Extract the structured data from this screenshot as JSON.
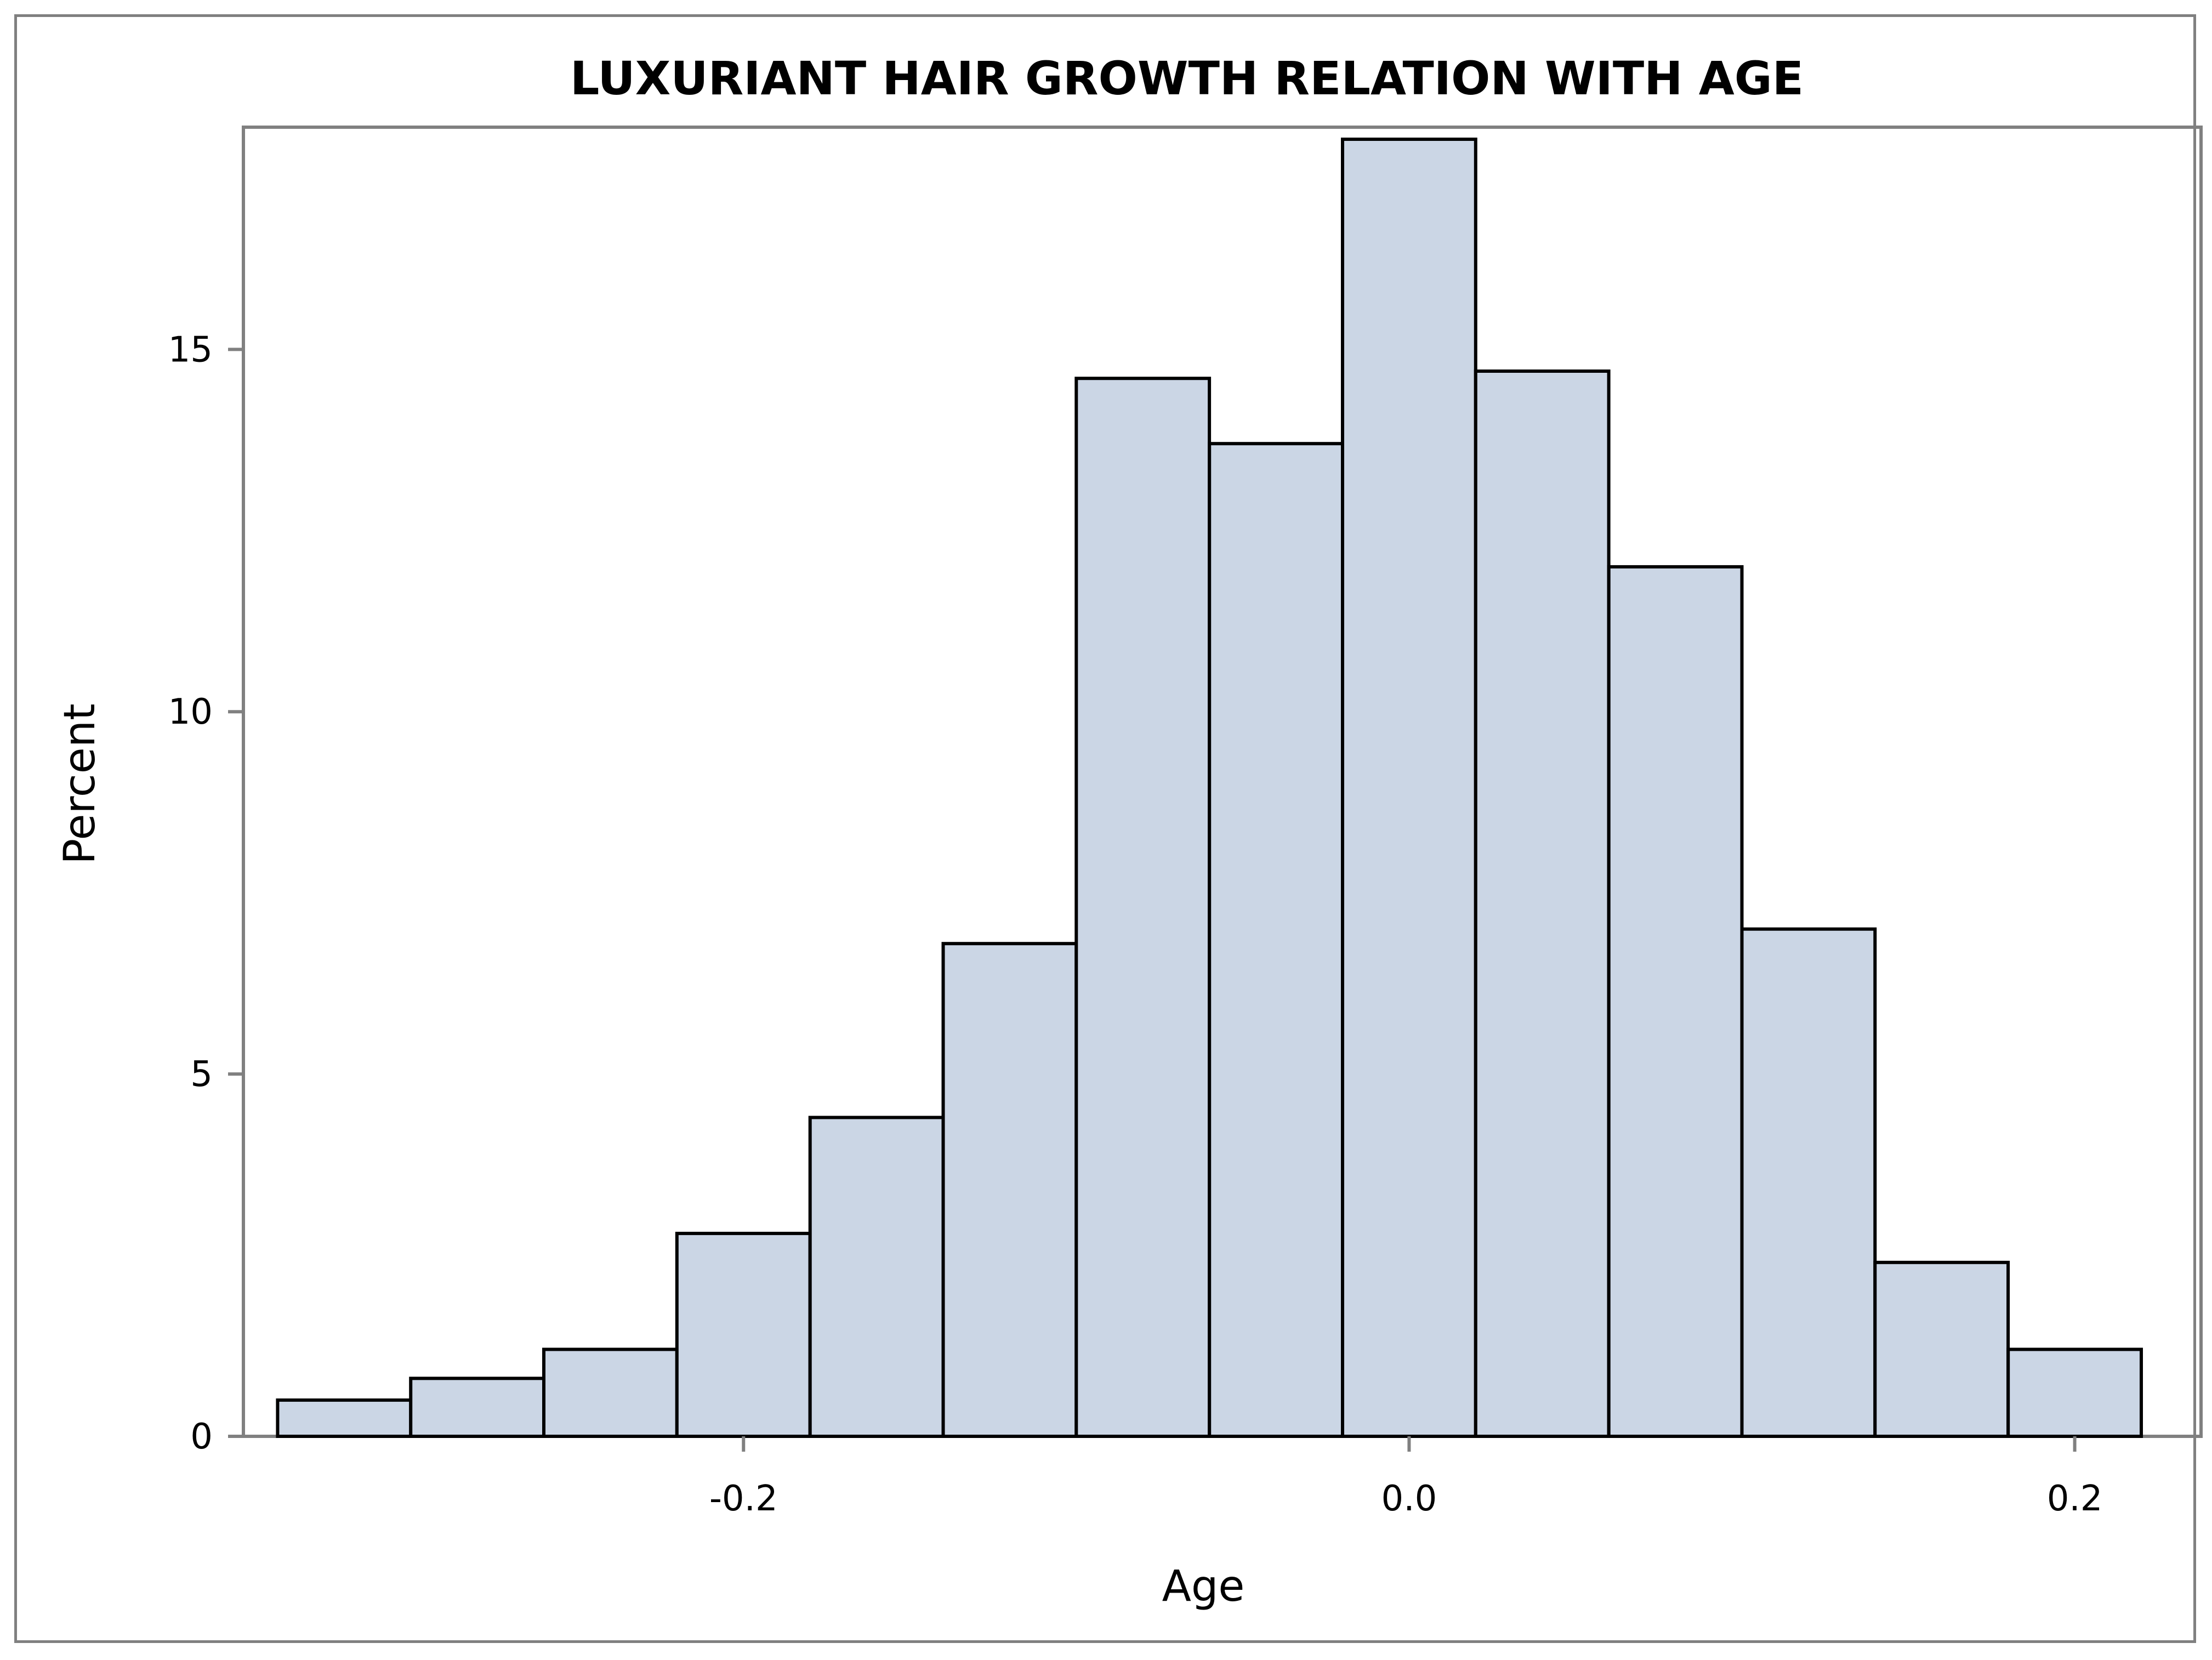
{
  "chart_data": {
    "type": "bar",
    "title": "LUXURIANT HAIR GROWTH RELATION WITH AGE",
    "xlabel": "Age",
    "ylabel": "Percent",
    "bin_edges": [
      -0.34,
      -0.3,
      -0.26,
      -0.22,
      -0.18,
      -0.14,
      -0.1,
      -0.06,
      -0.02,
      0.02,
      0.06,
      0.1,
      0.14,
      0.18,
      0.22
    ],
    "values": [
      0.5,
      0.8,
      1.2,
      2.8,
      4.4,
      6.8,
      14.6,
      13.7,
      17.9,
      14.7,
      12.0,
      7.0,
      2.4,
      1.2
    ],
    "xlim": [
      -0.345,
      0.22
    ],
    "ylim": [
      0,
      17.9
    ],
    "x_ticks": [
      -0.2,
      0.0,
      0.2
    ],
    "x_tick_labels": [
      "-0.2",
      "0.0",
      "0.2"
    ],
    "y_ticks": [
      0,
      5,
      10,
      15
    ],
    "y_tick_labels": [
      "0",
      "5",
      "10",
      "15"
    ],
    "grid": false,
    "legend": "none",
    "colors": {
      "bar_fill": "#cbd6e5",
      "bar_stroke": "#000000",
      "axis": "#808080"
    }
  }
}
